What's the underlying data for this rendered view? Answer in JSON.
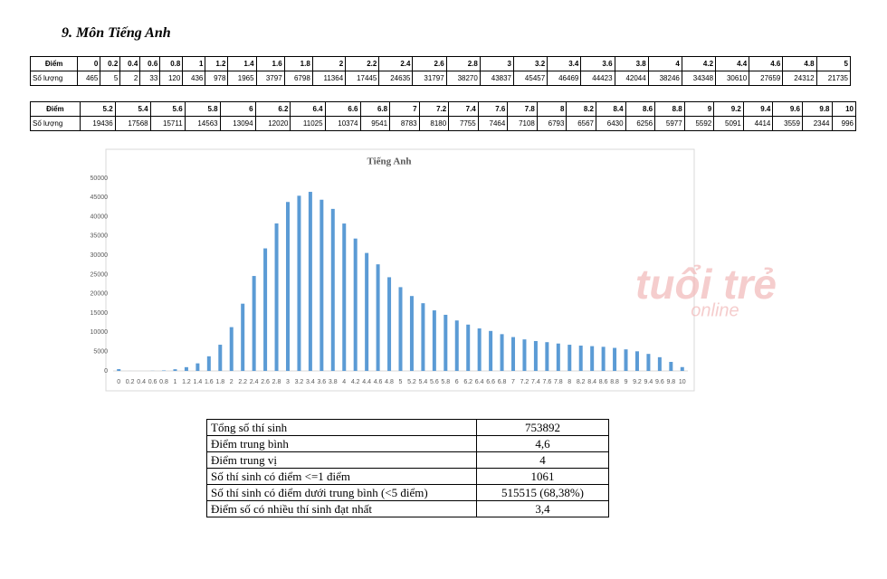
{
  "heading": "9.  Môn Tiếng Anh",
  "score_label": "Điểm",
  "count_label": "Số lượng",
  "chart_data": {
    "type": "bar",
    "title": "Tiếng Anh",
    "color": "#5b9bd5",
    "categories": [
      "0",
      "0.2",
      "0.4",
      "0.6",
      "0.8",
      "1",
      "1.2",
      "1.4",
      "1.6",
      "1.8",
      "2",
      "2.2",
      "2.4",
      "2.6",
      "2.8",
      "3",
      "3.2",
      "3.4",
      "3.6",
      "3.8",
      "4",
      "4.2",
      "4.4",
      "4.6",
      "4.8",
      "5",
      "5.2",
      "5.4",
      "5.6",
      "5.8",
      "6",
      "6.2",
      "6.4",
      "6.6",
      "6.8",
      "7",
      "7.2",
      "7.4",
      "7.6",
      "7.8",
      "8",
      "8.2",
      "8.4",
      "8.6",
      "8.8",
      "9",
      "9.2",
      "9.4",
      "9.6",
      "9.8",
      "10"
    ],
    "values": [
      465,
      5,
      2,
      33,
      120,
      436,
      978,
      1965,
      3797,
      6798,
      11364,
      17445,
      24635,
      31797,
      38270,
      43837,
      45457,
      46469,
      44423,
      42044,
      38246,
      34348,
      30610,
      27659,
      24312,
      21735,
      19436,
      17568,
      15711,
      14563,
      13094,
      12020,
      11025,
      10374,
      9541,
      8783,
      8180,
      7755,
      7464,
      7108,
      6793,
      6567,
      6430,
      6256,
      5977,
      5592,
      5091,
      4414,
      3559,
      2344,
      996
    ],
    "ylim": [
      0,
      50000
    ],
    "yticks": [
      0,
      5000,
      10000,
      15000,
      20000,
      25000,
      30000,
      35000,
      40000,
      45000,
      50000
    ]
  },
  "watermark": [
    "tuổi trẻ",
    "online"
  ],
  "summary": {
    "rows": [
      [
        "Tổng số thí sinh",
        "753892"
      ],
      [
        "Điểm trung bình",
        "4,6"
      ],
      [
        "Điểm trung vị",
        "4"
      ],
      [
        "Số thí sinh có điểm <=1 điểm",
        "1061"
      ],
      [
        "Số thí sinh có điểm dưới trung bình (<5 điểm)",
        "515515 (68,38%)"
      ],
      [
        "Điểm số có nhiều thí sinh đạt nhất",
        "3,4"
      ]
    ]
  }
}
